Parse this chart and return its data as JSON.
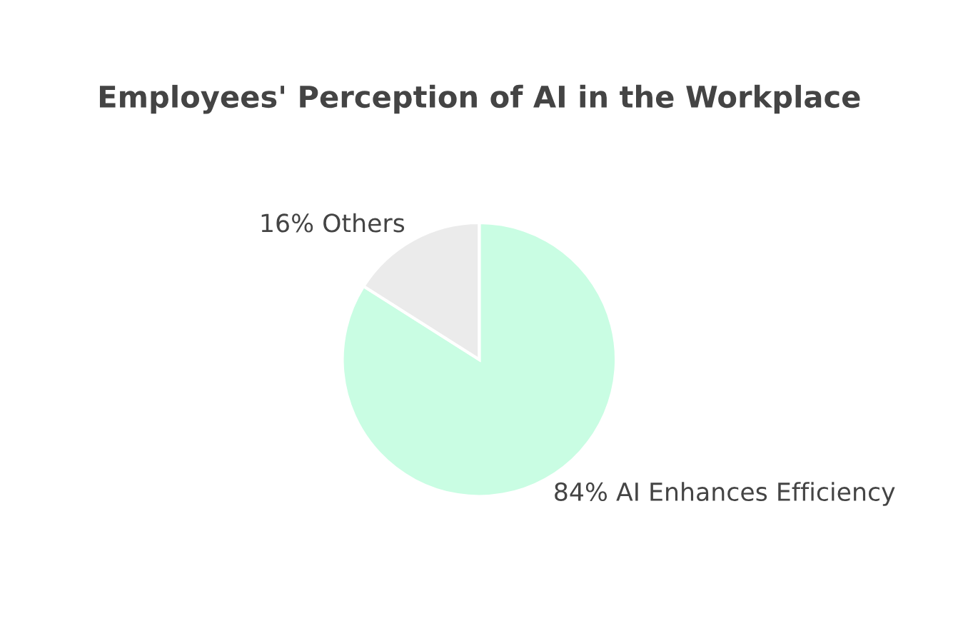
{
  "chart_data": {
    "type": "pie",
    "title": "Employees' Perception of AI in the Workplace",
    "categories": [
      "AI Enhances Efficiency",
      "Others"
    ],
    "values": [
      84,
      16
    ],
    "value_labels": [
      "84%",
      "16%"
    ],
    "colors": [
      "#c9fde3",
      "#ebebeb"
    ]
  }
}
